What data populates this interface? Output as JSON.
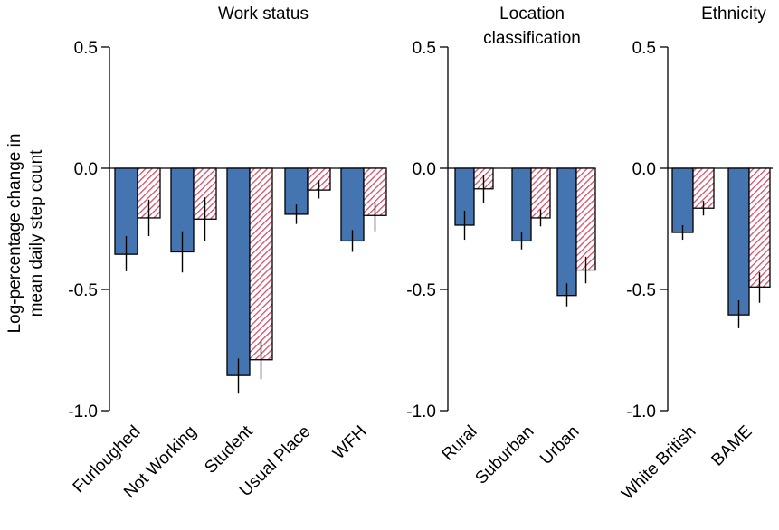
{
  "colors": {
    "series_1": "#4575b0",
    "series_2_hatch": "#d0506a",
    "axis": "#000000"
  },
  "chart_data": {
    "type": "bar",
    "ylabel_lines": [
      "Log-percentage change in",
      "mean daily step count"
    ],
    "ylim": [
      -1.0,
      0.5
    ],
    "yticks": [
      0.5,
      0.0,
      -0.5,
      -1.0
    ],
    "ytick_labels": [
      "0.5",
      "0.0",
      "-0.5",
      "-1.0"
    ],
    "grid": false,
    "legend": "none",
    "series_styles": [
      "solid blue",
      "red diagonal hatch"
    ],
    "panels": [
      {
        "title_lines": [
          "Work status"
        ],
        "categories": [
          "Furloughed",
          "Not Working",
          "Student",
          "Usual Place",
          "WFH"
        ],
        "series": [
          {
            "values": [
              -0.355,
              -0.345,
              -0.855,
              -0.19,
              -0.3
            ],
            "err_low": [
              -0.425,
              -0.43,
              -0.93,
              -0.23,
              -0.345
            ],
            "err_high": [
              -0.28,
              -0.26,
              -0.785,
              -0.15,
              -0.255
            ]
          },
          {
            "values": [
              -0.205,
              -0.21,
              -0.79,
              -0.09,
              -0.195
            ],
            "err_low": [
              -0.28,
              -0.3,
              -0.87,
              -0.125,
              -0.26
            ],
            "err_high": [
              -0.13,
              -0.12,
              -0.71,
              -0.05,
              -0.14
            ]
          }
        ]
      },
      {
        "title_lines": [
          "Location",
          "classification"
        ],
        "categories": [
          "Rural",
          "Suburban",
          "Urban"
        ],
        "series": [
          {
            "values": [
              -0.235,
              -0.3,
              -0.525
            ],
            "err_low": [
              -0.295,
              -0.335,
              -0.57
            ],
            "err_high": [
              -0.175,
              -0.265,
              -0.475
            ]
          },
          {
            "values": [
              -0.085,
              -0.205,
              -0.42
            ],
            "err_low": [
              -0.145,
              -0.24,
              -0.475
            ],
            "err_high": [
              -0.03,
              -0.17,
              -0.365
            ]
          }
        ]
      },
      {
        "title_lines": [
          "Ethnicity"
        ],
        "categories": [
          "White British",
          "BAME"
        ],
        "series": [
          {
            "values": [
              -0.265,
              -0.605
            ],
            "err_low": [
              -0.295,
              -0.66
            ],
            "err_high": [
              -0.235,
              -0.545
            ]
          },
          {
            "values": [
              -0.165,
              -0.49
            ],
            "err_low": [
              -0.195,
              -0.555
            ],
            "err_high": [
              -0.135,
              -0.43
            ]
          }
        ]
      }
    ]
  }
}
